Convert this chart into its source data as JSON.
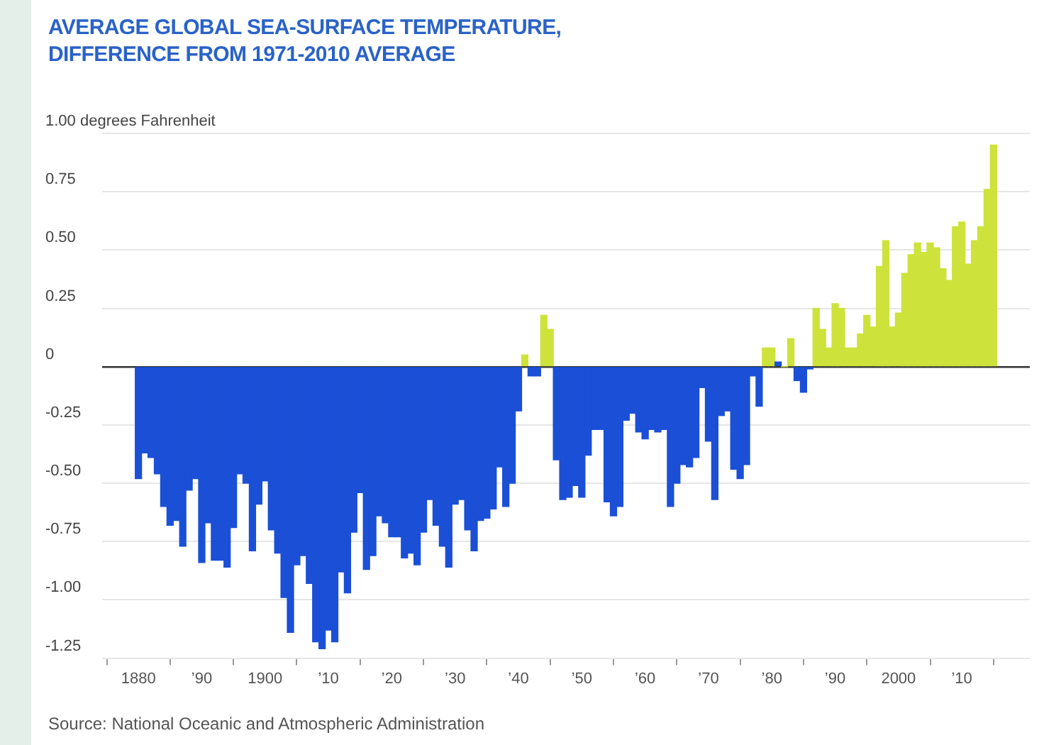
{
  "chart_data": {
    "type": "bar",
    "title": "AVERAGE GLOBAL SEA-SURFACE TEMPERATURE,\nDIFFERENCE FROM 1971-2010 AVERAGE",
    "annotations": [
      "Source: National Oceanic and Atmospheric Administration"
    ],
    "x": [
      1880,
      1881,
      1882,
      1883,
      1884,
      1885,
      1886,
      1887,
      1888,
      1889,
      1890,
      1891,
      1892,
      1893,
      1894,
      1895,
      1896,
      1897,
      1898,
      1899,
      1900,
      1901,
      1902,
      1903,
      1904,
      1905,
      1906,
      1907,
      1908,
      1909,
      1910,
      1911,
      1912,
      1913,
      1914,
      1915,
      1916,
      1917,
      1918,
      1919,
      1920,
      1921,
      1922,
      1923,
      1924,
      1925,
      1926,
      1927,
      1928,
      1929,
      1930,
      1931,
      1932,
      1933,
      1934,
      1935,
      1936,
      1937,
      1938,
      1939,
      1940,
      1941,
      1942,
      1943,
      1944,
      1945,
      1946,
      1947,
      1948,
      1949,
      1950,
      1951,
      1952,
      1953,
      1954,
      1955,
      1956,
      1957,
      1958,
      1959,
      1960,
      1961,
      1962,
      1963,
      1964,
      1965,
      1966,
      1967,
      1968,
      1969,
      1970,
      1971,
      1972,
      1973,
      1974,
      1975,
      1976,
      1977,
      1978,
      1979,
      1980,
      1981,
      1982,
      1983,
      1984,
      1985,
      1986,
      1987,
      1988,
      1989,
      1990,
      1991,
      1992,
      1993,
      1994,
      1995,
      1996,
      1997,
      1998,
      1999,
      2000,
      2001,
      2002,
      2003,
      2004,
      2005,
      2006,
      2007,
      2008,
      2009,
      2010,
      2011,
      2012,
      2013,
      2014,
      2015
    ],
    "values": [
      -0.48,
      -0.37,
      -0.39,
      -0.46,
      -0.6,
      -0.68,
      -0.66,
      -0.77,
      -0.53,
      -0.48,
      -0.84,
      -0.67,
      -0.83,
      -0.83,
      -0.86,
      -0.69,
      -0.46,
      -0.5,
      -0.79,
      -0.59,
      -0.49,
      -0.7,
      -0.8,
      -0.99,
      -1.14,
      -0.85,
      -0.81,
      -0.93,
      -1.18,
      -1.21,
      -1.13,
      -1.18,
      -0.88,
      -0.97,
      -0.71,
      -0.54,
      -0.87,
      -0.81,
      -0.64,
      -0.67,
      -0.73,
      -0.73,
      -0.82,
      -0.8,
      -0.85,
      -0.71,
      -0.57,
      -0.68,
      -0.77,
      -0.86,
      -0.59,
      -0.57,
      -0.7,
      -0.79,
      -0.66,
      -0.65,
      -0.61,
      -0.43,
      -0.6,
      -0.5,
      -0.19,
      0.05,
      -0.04,
      -0.04,
      0.22,
      0.16,
      -0.4,
      -0.57,
      -0.56,
      -0.51,
      -0.56,
      -0.38,
      -0.27,
      -0.27,
      -0.58,
      -0.64,
      -0.6,
      -0.23,
      -0.2,
      -0.28,
      -0.31,
      -0.27,
      -0.28,
      -0.27,
      -0.6,
      -0.5,
      -0.42,
      -0.43,
      -0.39,
      -0.09,
      -0.32,
      -0.57,
      -0.21,
      -0.19,
      -0.44,
      -0.48,
      -0.42,
      -0.04,
      -0.17,
      0.08,
      0.08,
      0.02,
      0,
      0.12,
      -0.06,
      -0.11,
      -0.01,
      0.25,
      0.16,
      0.08,
      0.27,
      0.25,
      0.08,
      0.08,
      0.14,
      0.22,
      0.17,
      0.43,
      0.54,
      0.17,
      0.23,
      0.4,
      0.48,
      0.53,
      0.49,
      0.53,
      0.51,
      0.42,
      0.37,
      0.6,
      0.62,
      0.44,
      0.54,
      0.6,
      0.76,
      0.95
    ],
    "colors": [
      "#1a4fd6",
      "#1a4fd6",
      "#1a4fd6",
      "#1a4fd6",
      "#1a4fd6",
      "#1a4fd6",
      "#1a4fd6",
      "#1a4fd6",
      "#1a4fd6",
      "#1a4fd6",
      "#1a4fd6",
      "#1a4fd6",
      "#1a4fd6",
      "#1a4fd6",
      "#1a4fd6",
      "#1a4fd6",
      "#1a4fd6",
      "#1a4fd6",
      "#1a4fd6",
      "#1a4fd6",
      "#1a4fd6",
      "#1a4fd6",
      "#1a4fd6",
      "#1a4fd6",
      "#1a4fd6",
      "#1a4fd6",
      "#1a4fd6",
      "#1a4fd6",
      "#1a4fd6",
      "#1a4fd6",
      "#1a4fd6",
      "#1a4fd6",
      "#1a4fd6",
      "#1a4fd6",
      "#1a4fd6",
      "#1a4fd6",
      "#1a4fd6",
      "#1a4fd6",
      "#1a4fd6",
      "#1a4fd6",
      "#1a4fd6",
      "#1a4fd6",
      "#1a4fd6",
      "#1a4fd6",
      "#1a4fd6",
      "#1a4fd6",
      "#1a4fd6",
      "#1a4fd6",
      "#1a4fd6",
      "#1a4fd6",
      "#1a4fd6",
      "#1a4fd6",
      "#1a4fd6",
      "#1a4fd6",
      "#1a4fd6",
      "#1a4fd6",
      "#1a4fd6",
      "#1a4fd6",
      "#1a4fd6",
      "#1a4fd6",
      "#1a4fd6",
      "#cde23a",
      "#1a4fd6",
      "#1a4fd6",
      "#cde23a",
      "#cde23a",
      "#1a4fd6",
      "#1a4fd6",
      "#1a4fd6",
      "#1a4fd6",
      "#1a4fd6",
      "#1a4fd6",
      "#1a4fd6",
      "#1a4fd6",
      "#1a4fd6",
      "#1a4fd6",
      "#1a4fd6",
      "#1a4fd6",
      "#1a4fd6",
      "#1a4fd6",
      "#1a4fd6",
      "#1a4fd6",
      "#1a4fd6",
      "#1a4fd6",
      "#1a4fd6",
      "#1a4fd6",
      "#1a4fd6",
      "#1a4fd6",
      "#1a4fd6",
      "#1a4fd6",
      "#1a4fd6",
      "#1a4fd6",
      "#1a4fd6",
      "#1a4fd6",
      "#1a4fd6",
      "#1a4fd6",
      "#1a4fd6",
      "#1a4fd6",
      "#1a4fd6",
      "#cde23a",
      "#cde23a",
      "#1a4fd6",
      "#cde23a",
      "#cde23a",
      "#1a4fd6",
      "#1a4fd6",
      "#1a4fd6",
      "#cde23a",
      "#cde23a",
      "#cde23a",
      "#cde23a",
      "#cde23a",
      "#cde23a",
      "#cde23a",
      "#cde23a",
      "#cde23a",
      "#cde23a",
      "#cde23a",
      "#cde23a",
      "#cde23a",
      "#cde23a",
      "#cde23a",
      "#cde23a",
      "#cde23a",
      "#cde23a",
      "#cde23a",
      "#cde23a",
      "#cde23a",
      "#cde23a",
      "#cde23a",
      "#cde23a",
      "#cde23a",
      "#cde23a",
      "#cde23a",
      "#cde23a",
      "#cde23a"
    ],
    "xlim": [
      1879.5,
      2015.5
    ],
    "xticks": [
      1880,
      {
        "value": 1890,
        "label": "’90"
      },
      1900,
      {
        "value": 1910,
        "label": "’10"
      },
      {
        "value": 1920,
        "label": "’20"
      },
      {
        "value": 1930,
        "label": "’30"
      },
      {
        "value": 1940,
        "label": "’40"
      },
      {
        "value": 1950,
        "label": "’50"
      },
      {
        "value": 1960,
        "label": "’60"
      },
      {
        "value": 1970,
        "label": "’70"
      },
      {
        "value": 1980,
        "label": "’80"
      },
      {
        "value": 1990,
        "label": "’90"
      },
      2000,
      {
        "value": 2010,
        "label": "’10"
      }
    ],
    "ylim": [
      -1.25,
      1.0
    ],
    "yticks": [
      {
        "value": 1,
        "label": "1.00 degrees Fahrenheit"
      },
      {
        "value": 0.75,
        "label": "0.75"
      },
      {
        "value": 0.5,
        "label": "0.50"
      },
      {
        "value": 0.25,
        "label": "0.25"
      },
      0,
      {
        "value": -0.25,
        "label": "-0.25"
      },
      {
        "value": -0.5,
        "label": "-0.50"
      },
      {
        "value": -0.75,
        "label": "-0.75"
      },
      {
        "value": -1,
        "label": "-1.00"
      },
      {
        "value": -1.25,
        "label": "-1.25"
      }
    ],
    "grid": "y",
    "legend": false
  }
}
